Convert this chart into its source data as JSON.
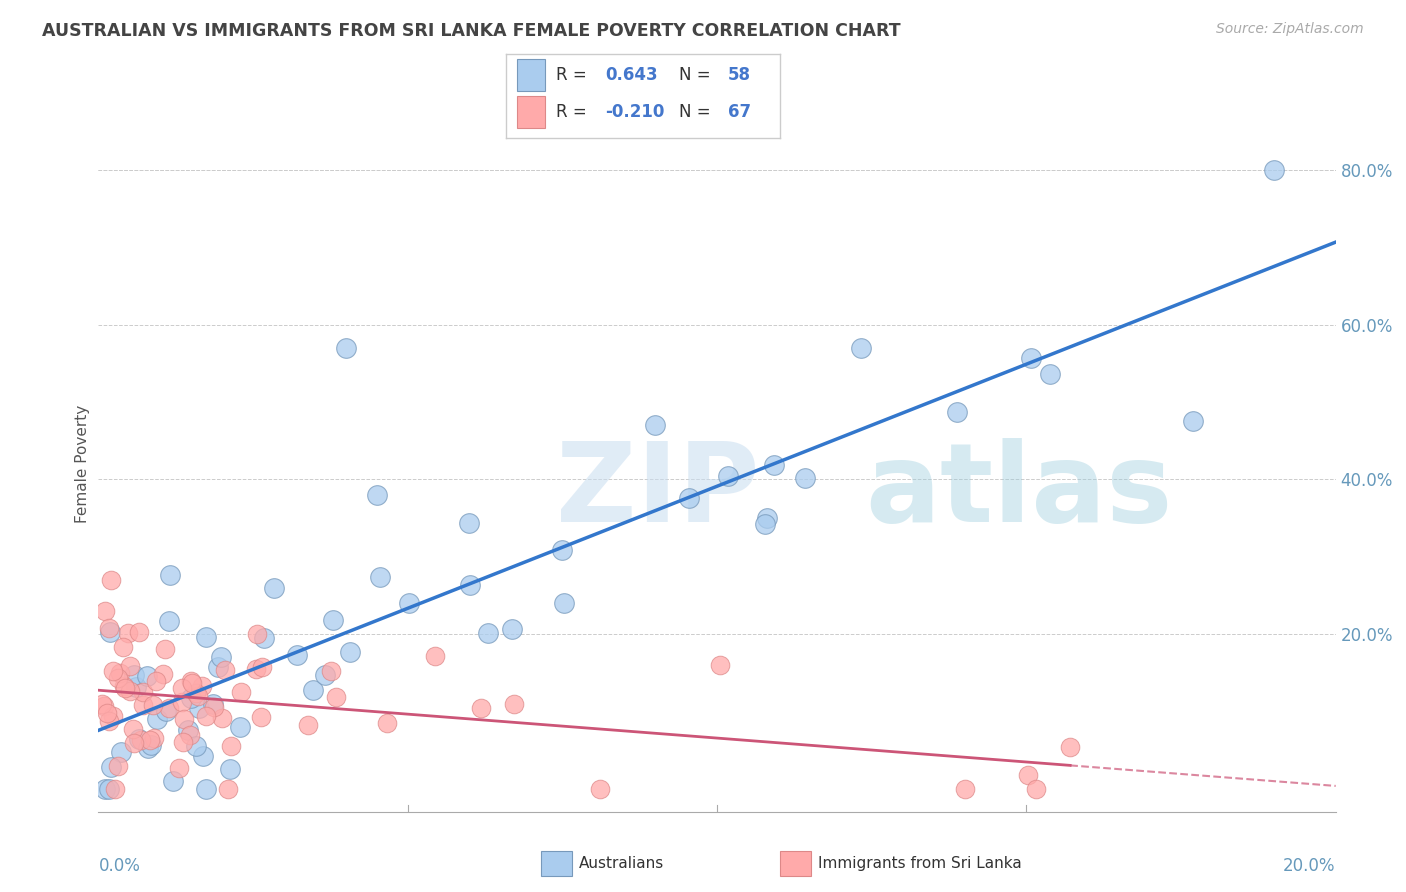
{
  "title": "AUSTRALIAN VS IMMIGRANTS FROM SRI LANKA FEMALE POVERTY CORRELATION CHART",
  "source": "Source: ZipAtlas.com",
  "ylabel": "Female Poverty",
  "xmin": 0.0,
  "xmax": 0.2,
  "ymin": -0.03,
  "ymax": 0.87,
  "watermark_zip": "ZIP",
  "watermark_atlas": "atlas",
  "blue_N": 58,
  "pink_N": 67,
  "blue_R": 0.643,
  "pink_R": -0.21,
  "background_color": "#ffffff",
  "grid_color": "#cccccc",
  "trend_color_blue": "#3377cc",
  "trend_color_pink": "#cc5577",
  "scatter_color_blue": "#aaccee",
  "scatter_color_pink": "#ffaaaa",
  "scatter_edge_blue": "#7799bb",
  "scatter_edge_pink": "#dd8888",
  "title_color": "#444444",
  "axis_label_color": "#6699bb",
  "watermark_color_zip": "#c8ddf0",
  "watermark_color_atlas": "#99ccdd",
  "legend_R_color": "#4477cc",
  "legend_N_color": "#333333",
  "ytick_vals": [
    0.0,
    0.2,
    0.4,
    0.6,
    0.8
  ],
  "ytick_labels": [
    "",
    "20.0%",
    "40.0%",
    "60.0%",
    "80.0%"
  ]
}
